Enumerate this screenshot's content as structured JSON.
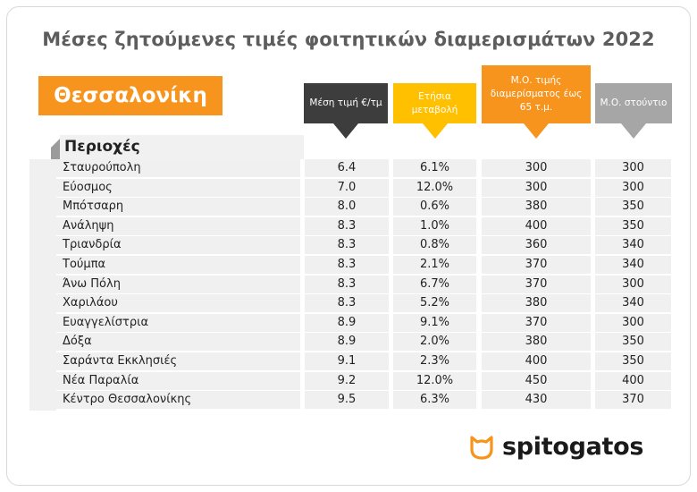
{
  "title": "Μέσες ζητούμενες τιμές φοιτητικών διαμερισμάτων 2022",
  "city": "Θεσσαλονίκη",
  "areas_label": "Περιοχές",
  "headers": [
    {
      "lines": [
        "Μέση τιμή €/τμ"
      ],
      "bg": "#3d3d3d",
      "arrow": "#3d3d3d"
    },
    {
      "lines": [
        "Ετήσια",
        "μεταβολή"
      ],
      "bg": "#ffc000",
      "arrow": "#ffc000"
    },
    {
      "lines": [
        "Μ.Ο. τιμής",
        "διαμερίσματος έως",
        "65 τ.μ."
      ],
      "bg": "#f7941d",
      "arrow": "#f7941d"
    },
    {
      "lines": [
        "Μ.Ο. στούντιο"
      ],
      "bg": "#a6a6a6",
      "arrow": "#a6a6a6"
    }
  ],
  "chart_data": {
    "type": "table",
    "title": "Μέσες ζητούμενες τιμές φοιτητικών διαμερισμάτων 2022",
    "columns": [
      "Περιοχές",
      "Μέση τιμή €/τμ",
      "Ετήσια μεταβολή",
      "Μ.Ο. τιμής διαμερίσματος έως 65 τ.μ.",
      "Μ.Ο. στούντιο"
    ],
    "rows": [
      [
        "Σταυρούπολη",
        "6.4",
        "6.1%",
        "300",
        "300"
      ],
      [
        "Εύοσμος",
        "7.0",
        "12.0%",
        "300",
        "300"
      ],
      [
        "Μπότσαρη",
        "8.0",
        "0.6%",
        "380",
        "350"
      ],
      [
        "Ανάληψη",
        "8.3",
        "1.0%",
        "400",
        "350"
      ],
      [
        "Τριανδρία",
        "8.3",
        "0.8%",
        "360",
        "340"
      ],
      [
        "Τούμπα",
        "8.3",
        "2.1%",
        "370",
        "340"
      ],
      [
        "Άνω Πόλη",
        "8.3",
        "6.7%",
        "370",
        "300"
      ],
      [
        "Χαριλάου",
        "8.3",
        "5.2%",
        "380",
        "340"
      ],
      [
        "Ευαγγελίστρια",
        "8.9",
        "9.1%",
        "370",
        "300"
      ],
      [
        "Δόξα",
        "8.9",
        "2.0%",
        "380",
        "350"
      ],
      [
        "Σαράντα Εκκλησιές",
        "9.1",
        "2.3%",
        "400",
        "350"
      ],
      [
        "Νέα Παραλία",
        "9.2",
        "12.0%",
        "450",
        "400"
      ],
      [
        "Κέντρο Θεσσαλονίκης",
        "9.5",
        "6.3%",
        "430",
        "370"
      ]
    ]
  },
  "logo": {
    "text": "spitogatos",
    "icon": "cat-face-icon",
    "icon_color": "#f7941d"
  }
}
